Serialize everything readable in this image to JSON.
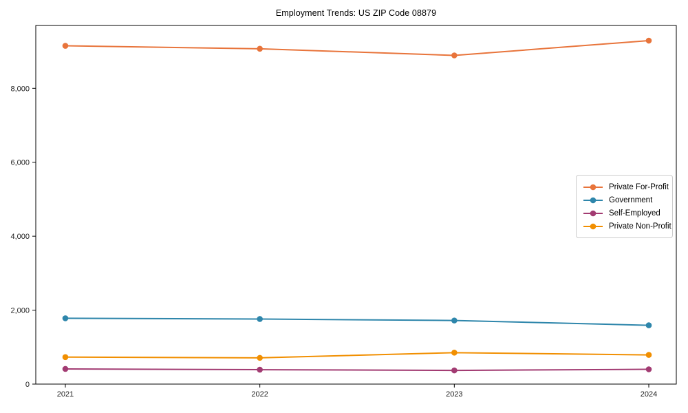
{
  "title": "Employment Trends: US ZIP Code 08879",
  "colors": {
    "background": "#ffffff",
    "axis": "#000000",
    "tick_label": "#1a1a1a",
    "legend_border": "#cccccc"
  },
  "chart_data": {
    "type": "line",
    "title": "Employment Trends: US ZIP Code 08879",
    "xlabel": "",
    "ylabel": "",
    "categories": [
      "2021",
      "2022",
      "2023",
      "2024"
    ],
    "y_ticks": [
      0,
      2000,
      4000,
      6000,
      8000
    ],
    "y_tick_labels": [
      "0",
      "2,000",
      "4,000",
      "6,000",
      "8,000"
    ],
    "ylim": [
      0,
      9700
    ],
    "grid": false,
    "legend_position": "center right",
    "marker": "circle",
    "series": [
      {
        "name": "Private For-Profit",
        "color": "#e8743b",
        "values": [
          9150,
          9070,
          8890,
          9290
        ]
      },
      {
        "name": "Government",
        "color": "#2e86ab",
        "values": [
          1780,
          1760,
          1720,
          1590
        ]
      },
      {
        "name": "Self-Employed",
        "color": "#a23b72",
        "values": [
          410,
          390,
          370,
          400
        ]
      },
      {
        "name": "Private Non-Profit",
        "color": "#f18f01",
        "values": [
          730,
          710,
          850,
          790
        ]
      }
    ]
  }
}
